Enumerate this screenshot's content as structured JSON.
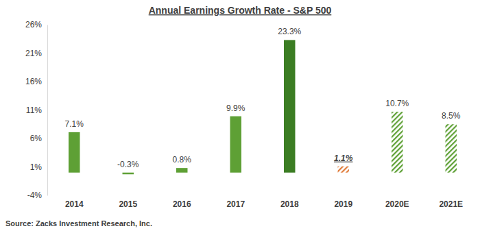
{
  "chart_data": {
    "type": "bar",
    "title": "Annual Earnings Growth Rate - S&P 500",
    "source": "Source: Zacks Investment Research, Inc.",
    "categories": [
      "2014",
      "2015",
      "2016",
      "2017",
      "2018",
      "2019",
      "2020E",
      "2021E"
    ],
    "values": [
      7.1,
      -0.3,
      0.8,
      9.9,
      23.3,
      1.1,
      10.7,
      8.5
    ],
    "value_labels": [
      "7.1%",
      "-0.3%",
      "0.8%",
      "9.9%",
      "23.3%",
      "1.1%",
      "10.7%",
      "8.5%"
    ],
    "colors": [
      "#5ea035",
      "#5ea035",
      "#5ea035",
      "#5ea035",
      "#3b7d23",
      "#e07b39",
      "#5ea035",
      "#5ea035"
    ],
    "ylim": [
      -4,
      26
    ],
    "yticks": [
      {
        "value": -4,
        "label": "-4%"
      },
      {
        "value": 1,
        "label": "1%"
      },
      {
        "value": 6,
        "label": "6%"
      },
      {
        "value": 11,
        "label": "11%"
      },
      {
        "value": 16,
        "label": "16%"
      },
      {
        "value": 21,
        "label": "21%"
      },
      {
        "value": 26,
        "label": "26%"
      }
    ],
    "grid": false,
    "data_labels": true
  }
}
